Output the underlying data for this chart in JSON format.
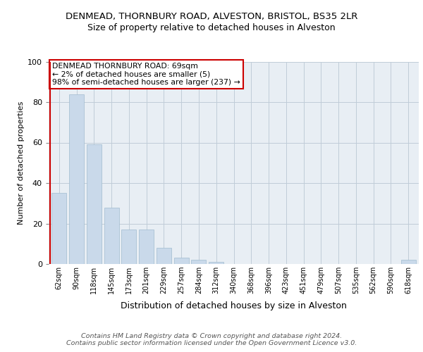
{
  "title": "DENMEAD, THORNBURY ROAD, ALVESTON, BRISTOL, BS35 2LR",
  "subtitle": "Size of property relative to detached houses in Alveston",
  "xlabel": "Distribution of detached houses by size in Alveston",
  "ylabel": "Number of detached properties",
  "categories": [
    "62sqm",
    "90sqm",
    "118sqm",
    "145sqm",
    "173sqm",
    "201sqm",
    "229sqm",
    "257sqm",
    "284sqm",
    "312sqm",
    "340sqm",
    "368sqm",
    "396sqm",
    "423sqm",
    "451sqm",
    "479sqm",
    "507sqm",
    "535sqm",
    "562sqm",
    "590sqm",
    "618sqm"
  ],
  "values": [
    35,
    84,
    59,
    28,
    17,
    17,
    8,
    3,
    2,
    1,
    0,
    0,
    0,
    0,
    0,
    0,
    0,
    0,
    0,
    0,
    2
  ],
  "bar_color": "#c9d9ea",
  "bar_edge_color": "#a0bbcf",
  "ylim": [
    0,
    100
  ],
  "yticks": [
    0,
    20,
    40,
    60,
    80,
    100
  ],
  "annotation_text": "DENMEAD THORNBURY ROAD: 69sqm\n← 2% of detached houses are smaller (5)\n98% of semi-detached houses are larger (237) →",
  "footer_text": "Contains HM Land Registry data © Crown copyright and database right 2024.\nContains public sector information licensed under the Open Government Licence v3.0.",
  "bg_color": "#e8eef4",
  "grid_color": "#c0ccd8",
  "title_fontsize": 9.5,
  "subtitle_fontsize": 9,
  "xlabel_fontsize": 9,
  "ylabel_fontsize": 8,
  "annotation_box_edge_color": "#cc0000",
  "annotation_fontsize": 7.8,
  "footer_fontsize": 6.8,
  "red_line_color": "#cc0000"
}
